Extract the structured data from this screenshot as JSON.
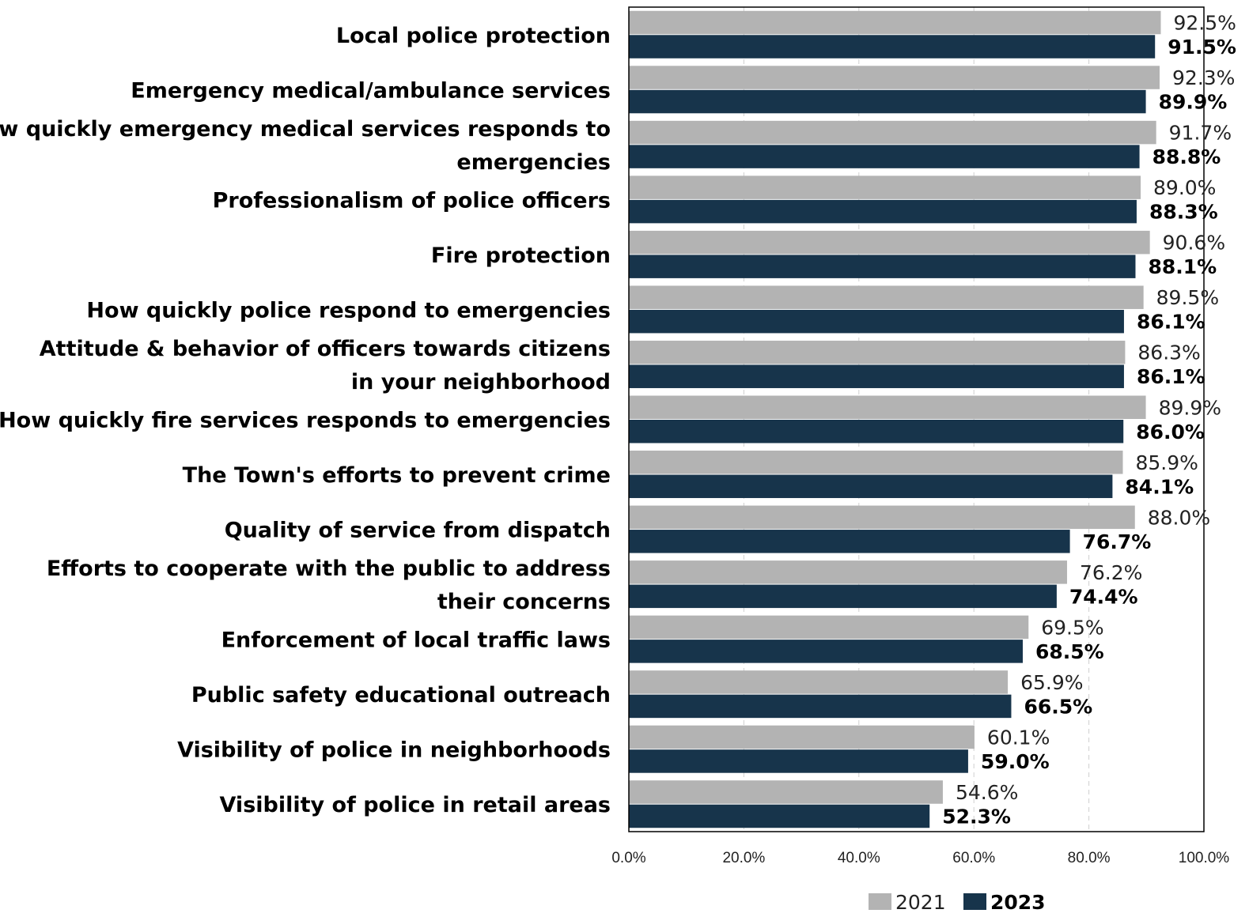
{
  "chart_data": {
    "type": "bar",
    "orientation": "horizontal",
    "categories": [
      "Local police protection",
      "Emergency medical/ambulance services",
      "How quickly emergency medical services responds to emergencies",
      "Professionalism of police officers",
      "Fire protection",
      "How quickly police respond to emergencies",
      "Attitude & behavior of officers towards citizens in your neighborhood",
      "How quickly fire services responds to emergencies",
      "The Town's efforts to prevent crime",
      "Quality of service from dispatch",
      "Efforts to cooperate with the public to address their concerns",
      "Enforcement of local traffic laws",
      "Public safety educational outreach",
      "Visibility of police in neighborhoods",
      "Visibility of police in retail areas"
    ],
    "category_lines": [
      [
        "Local police protection"
      ],
      [
        "Emergency medical/ambulance services"
      ],
      [
        "How quickly emergency medical services responds to",
        "emergencies"
      ],
      [
        "Professionalism of police officers"
      ],
      [
        "Fire protection"
      ],
      [
        "How quickly police respond to emergencies"
      ],
      [
        "Attitude & behavior of officers towards citizens",
        "in your neighborhood"
      ],
      [
        "How quickly fire services responds to emergencies"
      ],
      [
        "The Town's efforts to prevent crime"
      ],
      [
        "Quality of service from dispatch"
      ],
      [
        "Efforts to cooperate with the public to address",
        "their concerns"
      ],
      [
        "Enforcement of local traffic laws"
      ],
      [
        "Public safety educational outreach"
      ],
      [
        "Visibility of police in neighborhoods"
      ],
      [
        "Visibility of police in retail areas"
      ]
    ],
    "series": [
      {
        "name": "2021",
        "color": "#b3b3b3",
        "values": [
          92.5,
          92.3,
          91.7,
          89.0,
          90.6,
          89.5,
          86.3,
          89.9,
          85.9,
          88.0,
          76.2,
          69.5,
          65.9,
          60.1,
          54.6
        ],
        "labels": [
          "92.5%",
          "92.3%",
          "91.7%",
          "89.0%",
          "90.6%",
          "89.5%",
          "86.3%",
          "89.9%",
          "85.9%",
          "88.0%",
          "76.2%",
          "69.5%",
          "65.9%",
          "60.1%",
          "54.6%"
        ]
      },
      {
        "name": "2023",
        "color": "#17344b",
        "values": [
          91.5,
          89.9,
          88.8,
          88.3,
          88.1,
          86.1,
          86.1,
          86.0,
          84.1,
          76.7,
          74.4,
          68.5,
          66.5,
          59.0,
          52.3
        ],
        "labels": [
          "91.5%",
          "89.9%",
          "88.8%",
          "88.3%",
          "88.1%",
          "86.1%",
          "86.1%",
          "86.0%",
          "84.1%",
          "76.7%",
          "74.4%",
          "68.5%",
          "66.5%",
          "59.0%",
          "52.3%"
        ]
      }
    ],
    "xlim": [
      0,
      100
    ],
    "xticks": [
      0,
      20,
      40,
      60,
      80,
      100
    ],
    "xtick_labels": [
      "0.0%",
      "20.0%",
      "40.0%",
      "60.0%",
      "80.0%",
      "100.0%"
    ],
    "grid": "vertical dashed",
    "legend_position": "bottom",
    "title": "",
    "xlabel": "",
    "ylabel": ""
  }
}
